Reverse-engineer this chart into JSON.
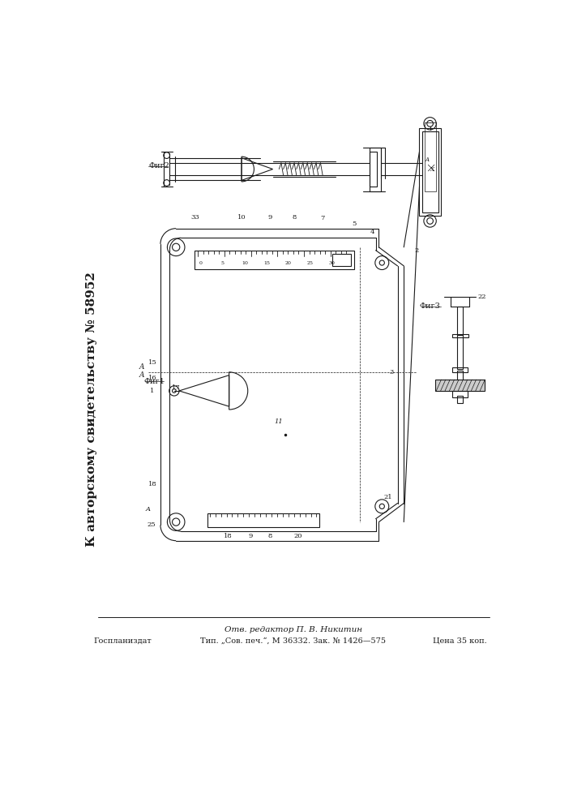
{
  "bg_color": "#ffffff",
  "line_color": "#1a1a1a",
  "side_text": "К авторскому свидетельству № 58952",
  "footer_line1": "Отв. редактор П. В. Никитин",
  "footer_line2": "Тип. „Сов. печ.“, М 36332. Зак. № 1426—575",
  "footer_left": "Госпланиздат",
  "footer_right": "Цена 35 коп.",
  "fig1_label": "Фиг1",
  "fig2_label": "Фиг2",
  "fig3_label": "Фиг3"
}
